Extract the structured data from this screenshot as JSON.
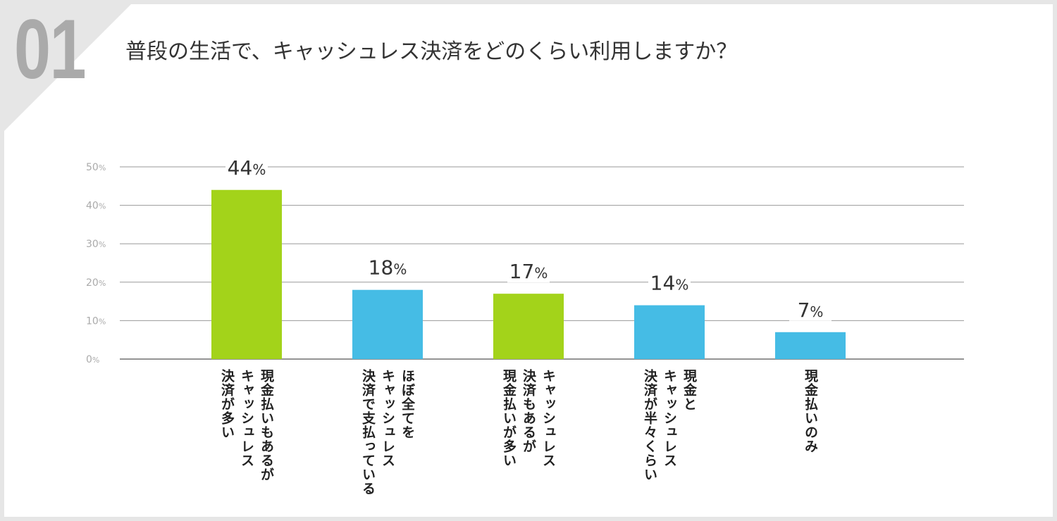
{
  "question_number": "01",
  "title": "普段の生活で、キャッシュレス決済をどのくらい利用しますか？",
  "colors": {
    "green": "#a3d31a",
    "blue": "#45bce5",
    "grid": "#9a9a9a",
    "axis_text": "#aaaaaa",
    "value_text": "#333333"
  },
  "chart_data": {
    "type": "bar",
    "title": "普段の生活で、キャッシュレス決済をどのくらい利用しますか？",
    "ylim": [
      0,
      50
    ],
    "yticks": [
      0,
      10,
      20,
      30,
      40,
      50
    ],
    "tick_suffix": "%",
    "grid": true,
    "categories": [
      "現金払いもあるがキャッシュレス決済が多い",
      "ほぼ全てをキャッシュレス決済で支払っている",
      "キャッシュレス決済もあるが現金払いが多い",
      "現金とキャッシュレス決済が半々くらい",
      "現金払いのみ"
    ],
    "category_lines": [
      [
        "現金払いもあるが",
        "キャッシュレス",
        "決済が多い"
      ],
      [
        "ほぼ全てを",
        "キャッシュレス",
        "決済で支払っている"
      ],
      [
        "キャッシュレス",
        "決済もあるが",
        "現金払いが多い"
      ],
      [
        "現金と",
        "キャッシュレス",
        "決済が半々くらい"
      ],
      [
        "現金払いのみ"
      ]
    ],
    "values": [
      44,
      18,
      17,
      14,
      7
    ],
    "bar_colors": [
      "green",
      "blue",
      "green",
      "blue",
      "blue"
    ]
  }
}
